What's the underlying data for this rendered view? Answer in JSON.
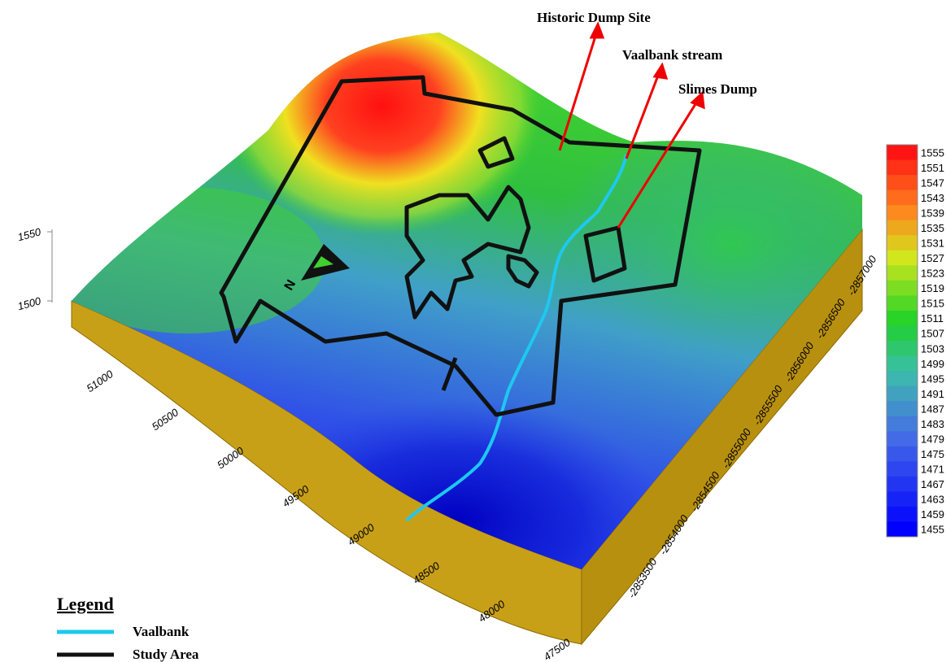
{
  "annotations": [
    "Historic Dump Site",
    "Vaalbank stream",
    "Slimes Dump"
  ],
  "north_label": "N",
  "x_axis": {
    "ticks": [
      51000,
      50500,
      50000,
      49500,
      49000,
      48500,
      48000,
      47500
    ]
  },
  "y_axis": {
    "ticks": [
      -2853500,
      -2854000,
      -2854500,
      -2855000,
      -2855500,
      -2856000,
      -2856500,
      -2857000
    ]
  },
  "z_axis": {
    "ticks": [
      1500,
      1550
    ]
  },
  "colorbar": {
    "ticks": [
      1555,
      1551,
      1547,
      1543,
      1539,
      1535,
      1531,
      1527,
      1523,
      1519,
      1515,
      1511,
      1507,
      1503,
      1499,
      1495,
      1491,
      1487,
      1483,
      1479,
      1475,
      1471,
      1467,
      1463,
      1459,
      1455
    ]
  },
  "legend": {
    "title": "Legend",
    "items": [
      {
        "label": "Vaalbank",
        "color": "#1ec8f0"
      },
      {
        "label": "Study Area",
        "color": "#111111"
      }
    ]
  }
}
